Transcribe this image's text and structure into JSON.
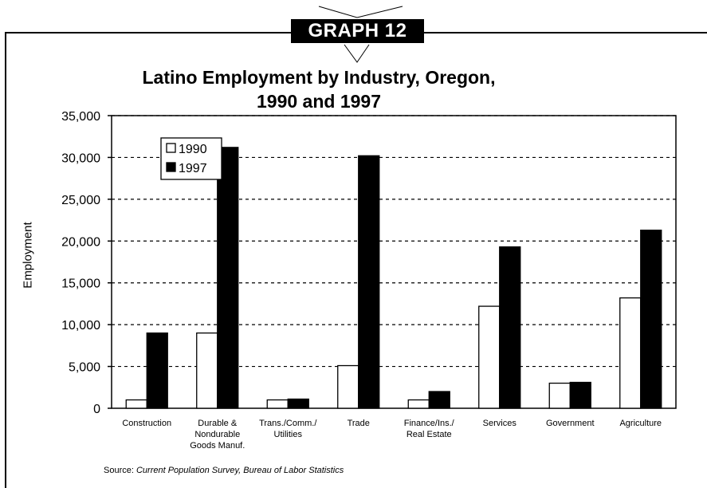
{
  "badge": "GRAPH 12",
  "chart_data": {
    "type": "bar",
    "title": "Latino Employment by Industry, Oregon,",
    "subtitle": "1990 and 1997",
    "xlabel": "",
    "ylabel": "Employment",
    "ylim": [
      0,
      35000
    ],
    "yticks": [
      "0",
      "5,000",
      "10,000",
      "15,000",
      "20,000",
      "25,000",
      "30,000",
      "35,000"
    ],
    "grid": true,
    "legend_position": "top-left",
    "categories": [
      [
        "Construction"
      ],
      [
        "Durable &",
        "Nondurable",
        "Goods Manuf."
      ],
      [
        "Trans./Comm./",
        "Utilities"
      ],
      [
        "Trade"
      ],
      [
        "Finance/Ins./",
        "Real Estate"
      ],
      [
        "Services"
      ],
      [
        "Government"
      ],
      [
        "Agriculture"
      ]
    ],
    "series": [
      {
        "name": "1990",
        "color": "#ffffff",
        "values": [
          1000,
          9000,
          1000,
          5100,
          1000,
          12200,
          3000,
          13200
        ]
      },
      {
        "name": "1997",
        "color": "#000000",
        "values": [
          9000,
          31200,
          1100,
          30200,
          2000,
          19300,
          3100,
          21300
        ]
      }
    ]
  },
  "source": {
    "label": "Source:",
    "text": "Current Population Survey, Bureau of Labor Statistics"
  }
}
